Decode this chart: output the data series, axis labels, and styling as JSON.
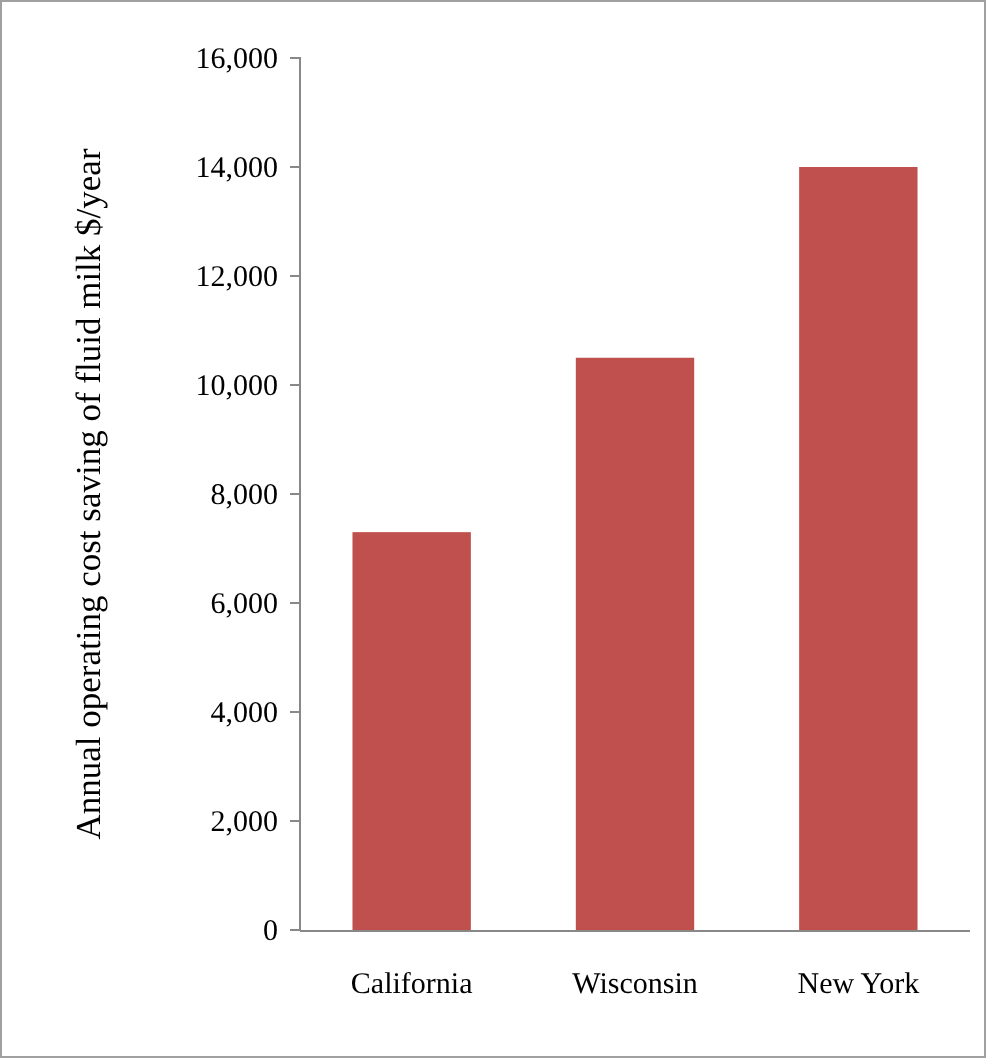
{
  "chart_data": {
    "type": "bar",
    "ylabel": "Annual operating cost saving of fluid milk $/year",
    "categories": [
      "California",
      "Wisconsin",
      "New York"
    ],
    "series": [
      {
        "color": "#c0504d",
        "values": [
          7300,
          10500,
          14000
        ]
      }
    ],
    "ylim": [
      0,
      16000
    ],
    "yticks": [
      {
        "value": 0,
        "label": "0"
      },
      {
        "value": 2000,
        "label": "2,000"
      },
      {
        "value": 4000,
        "label": "4,000"
      },
      {
        "value": 6000,
        "label": "6,000"
      },
      {
        "value": 8000,
        "label": "8,000"
      },
      {
        "value": 10000,
        "label": "10,000"
      },
      {
        "value": 12000,
        "label": "12,000"
      },
      {
        "value": 14000,
        "label": "14,000"
      },
      {
        "value": 16000,
        "label": "16,000"
      }
    ],
    "grid": false
  }
}
